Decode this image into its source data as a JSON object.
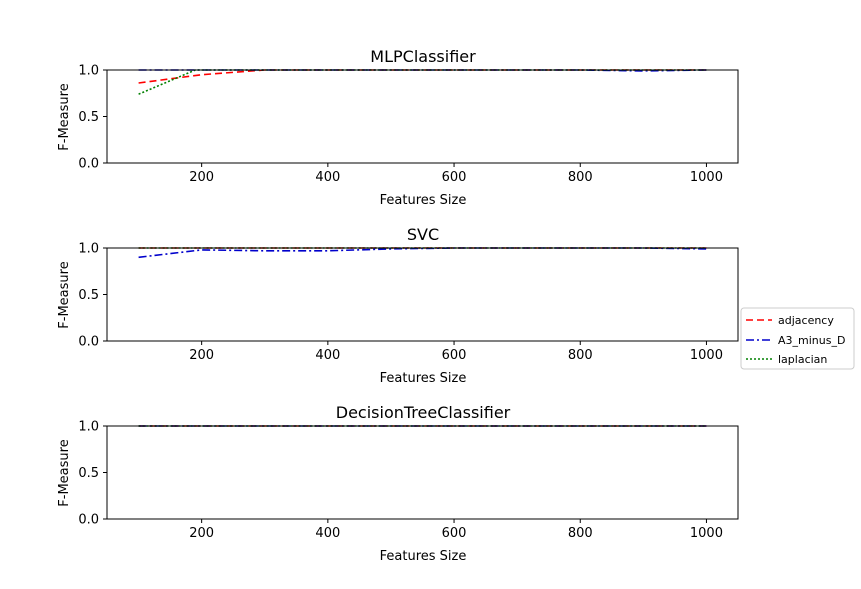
{
  "figure": {
    "legend_placement": "center-right",
    "legend": [
      {
        "label": "adjacency",
        "color": "#ff0000",
        "style": "dashed"
      },
      {
        "label": "A3_minus_D",
        "color": "#0000cc",
        "style": "dashdot"
      },
      {
        "label": "laplacian",
        "color": "#008000",
        "style": "dotted"
      }
    ]
  },
  "chart_data": [
    {
      "type": "line",
      "title": "MLPClassifier",
      "xlabel": "Features Size",
      "ylabel": "F-Measure",
      "xlim": [
        50,
        1050
      ],
      "ylim": [
        0.0,
        1.0
      ],
      "xticks": [
        "200",
        "400",
        "600",
        "800",
        "1000"
      ],
      "yticks": [
        "0.0",
        "0.5",
        "1.0"
      ],
      "grid": false,
      "series": [
        {
          "name": "adjacency",
          "x": [
            100,
            200,
            300,
            400,
            500,
            600,
            700,
            800,
            900,
            1000
          ],
          "y": [
            0.86,
            0.95,
            1.0,
            1.0,
            1.0,
            1.0,
            1.0,
            1.0,
            1.0,
            1.0
          ]
        },
        {
          "name": "A3_minus_D",
          "x": [
            100,
            200,
            300,
            400,
            500,
            600,
            700,
            800,
            900,
            1000
          ],
          "y": [
            1.0,
            1.0,
            1.0,
            1.0,
            1.0,
            1.0,
            1.0,
            1.0,
            0.99,
            1.0
          ]
        },
        {
          "name": "laplacian",
          "x": [
            100,
            190,
            200,
            300,
            400,
            500,
            600,
            700,
            800,
            900,
            1000
          ],
          "y": [
            0.74,
            1.0,
            1.0,
            1.0,
            1.0,
            1.0,
            1.0,
            1.0,
            1.0,
            1.0,
            1.0
          ]
        }
      ]
    },
    {
      "type": "line",
      "title": "SVC",
      "xlabel": "Features Size",
      "ylabel": "F-Measure",
      "xlim": [
        50,
        1050
      ],
      "ylim": [
        0.0,
        1.0
      ],
      "xticks": [
        "200",
        "400",
        "600",
        "800",
        "1000"
      ],
      "yticks": [
        "0.0",
        "0.5",
        "1.0"
      ],
      "grid": false,
      "series": [
        {
          "name": "adjacency",
          "x": [
            100,
            200,
            300,
            400,
            500,
            600,
            700,
            800,
            900,
            1000
          ],
          "y": [
            1.0,
            1.0,
            1.0,
            1.0,
            1.0,
            1.0,
            1.0,
            1.0,
            1.0,
            1.0
          ]
        },
        {
          "name": "A3_minus_D",
          "x": [
            100,
            200,
            300,
            400,
            500,
            600,
            700,
            800,
            900,
            1000
          ],
          "y": [
            0.9,
            0.98,
            0.97,
            0.97,
            0.99,
            1.0,
            1.0,
            1.0,
            1.0,
            0.99
          ]
        },
        {
          "name": "laplacian",
          "x": [
            100,
            200,
            300,
            400,
            500,
            600,
            700,
            800,
            900,
            1000
          ],
          "y": [
            1.0,
            1.0,
            1.0,
            1.0,
            1.0,
            1.0,
            1.0,
            1.0,
            1.0,
            1.0
          ]
        }
      ]
    },
    {
      "type": "line",
      "title": "DecisionTreeClassifier",
      "xlabel": "Features Size",
      "ylabel": "F-Measure",
      "xlim": [
        50,
        1050
      ],
      "ylim": [
        0.0,
        1.0
      ],
      "xticks": [
        "200",
        "400",
        "600",
        "800",
        "1000"
      ],
      "yticks": [
        "0.0",
        "0.5",
        "1.0"
      ],
      "grid": false,
      "series": [
        {
          "name": "adjacency",
          "x": [
            100,
            200,
            300,
            400,
            500,
            600,
            700,
            800,
            900,
            1000
          ],
          "y": [
            1.0,
            1.0,
            1.0,
            1.0,
            1.0,
            1.0,
            1.0,
            1.0,
            1.0,
            1.0
          ]
        },
        {
          "name": "A3_minus_D",
          "x": [
            100,
            200,
            300,
            400,
            500,
            600,
            700,
            800,
            900,
            1000
          ],
          "y": [
            1.0,
            1.0,
            1.0,
            1.0,
            1.0,
            1.0,
            1.0,
            1.0,
            1.0,
            1.0
          ]
        },
        {
          "name": "laplacian",
          "x": [
            100,
            200,
            300,
            400,
            500,
            600,
            700,
            800,
            900,
            1000
          ],
          "y": [
            1.0,
            1.0,
            1.0,
            1.0,
            1.0,
            1.0,
            1.0,
            1.0,
            1.0,
            1.0
          ]
        }
      ]
    }
  ]
}
